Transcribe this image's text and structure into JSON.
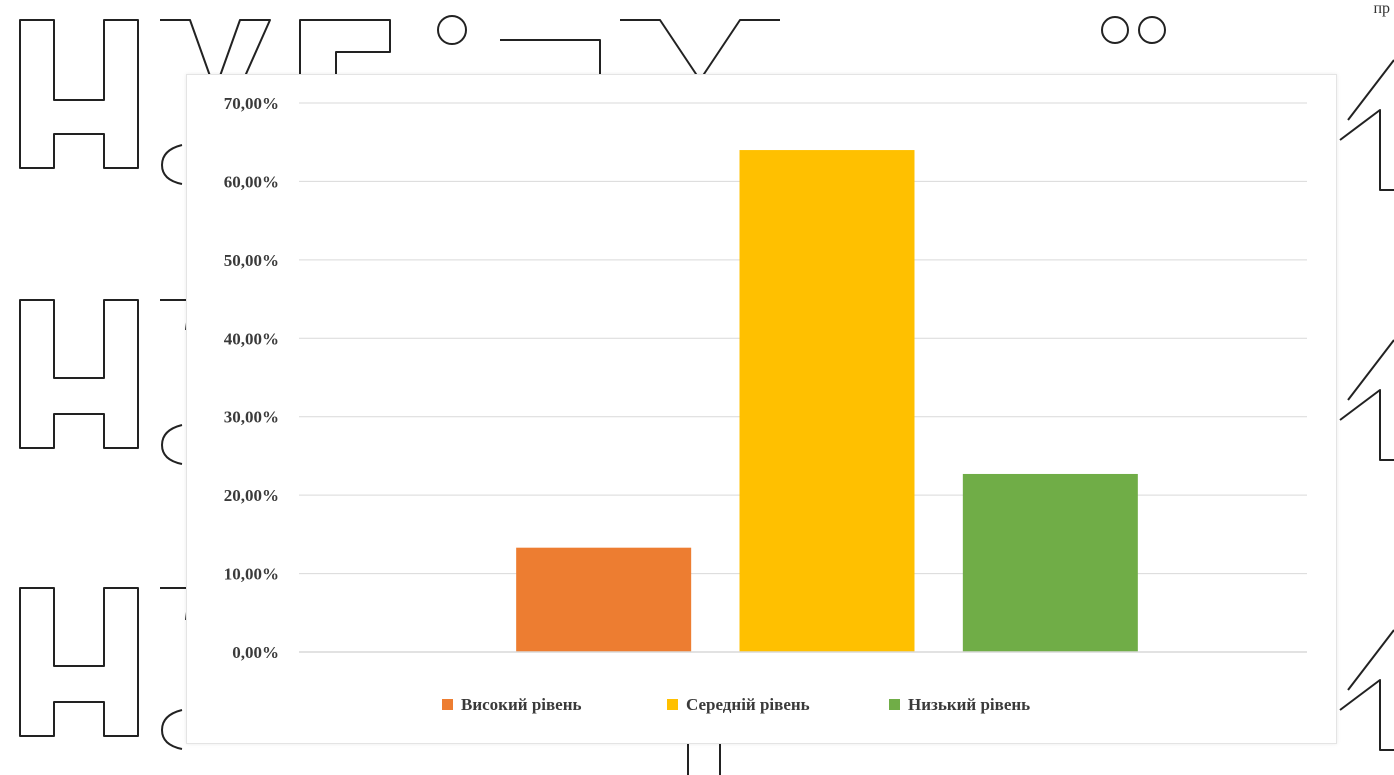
{
  "page": {
    "corner_text": "пр"
  },
  "watermark": {
    "text": "НУБіП України"
  },
  "chart_data": {
    "type": "bar",
    "title": "",
    "xlabel": "",
    "ylabel": "",
    "categories": [
      "Високий рівень",
      "Середній рівень",
      "Низький рівень"
    ],
    "values": [
      13.3,
      64.0,
      22.7
    ],
    "colors": [
      "#ed7d31",
      "#ffc000",
      "#70ad47"
    ],
    "ylim": [
      0,
      70
    ],
    "yticks": [
      0,
      10,
      20,
      30,
      40,
      50,
      60,
      70
    ],
    "ytick_labels": [
      "0,00%",
      "10,00%",
      "20,00%",
      "30,00%",
      "40,00%",
      "50,00%",
      "60,00%",
      "70,00%"
    ],
    "grid": true,
    "legend": {
      "position": "bottom",
      "entries": [
        "Високий рівень",
        "Середній рівень",
        "Низький рівень"
      ]
    }
  }
}
